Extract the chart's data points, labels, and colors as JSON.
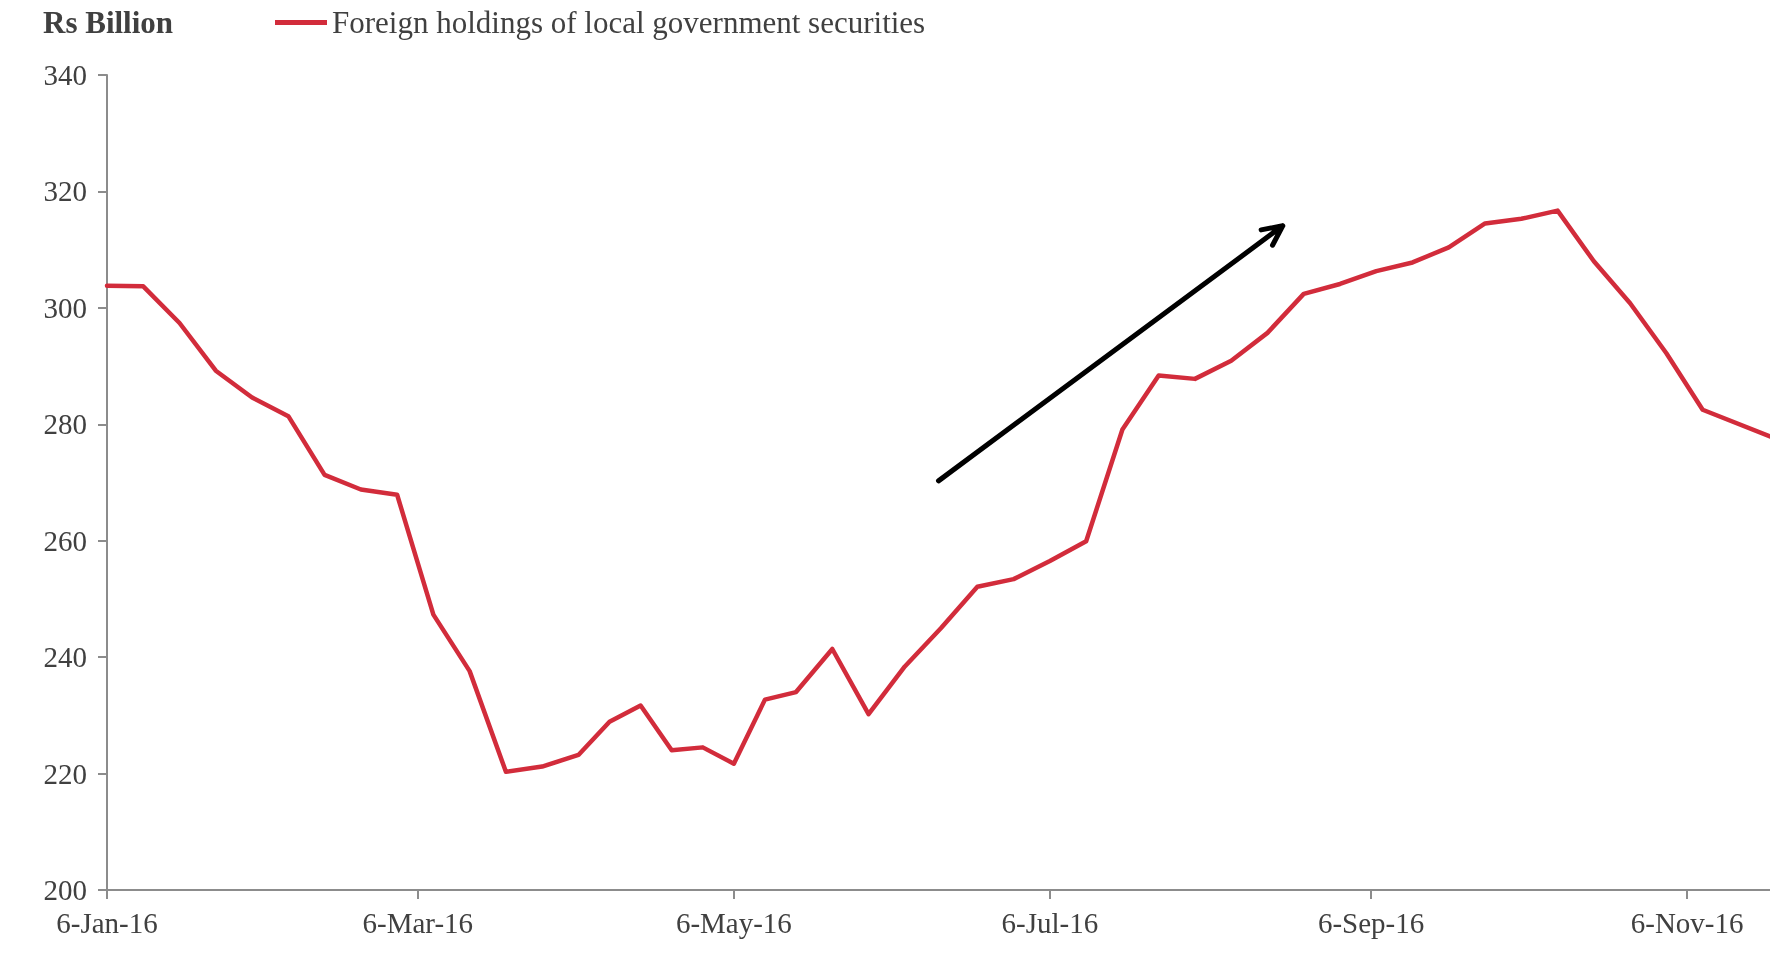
{
  "chart_data": {
    "type": "line",
    "ylabel": "Rs Billion",
    "legend": "top",
    "grid": false,
    "marker": "none",
    "line_style": "solid",
    "x": [
      "2016-01-06",
      "2016-01-13",
      "2016-01-20",
      "2016-01-27",
      "2016-02-03",
      "2016-02-10",
      "2016-02-17",
      "2016-02-24",
      "2016-03-02",
      "2016-03-09",
      "2016-03-16",
      "2016-03-23",
      "2016-03-30",
      "2016-04-06",
      "2016-04-12",
      "2016-04-18",
      "2016-04-24",
      "2016-04-30",
      "2016-05-06",
      "2016-05-12",
      "2016-05-18",
      "2016-05-25",
      "2016-06-01",
      "2016-06-08",
      "2016-06-15",
      "2016-06-22",
      "2016-06-29",
      "2016-07-06",
      "2016-07-13",
      "2016-07-20",
      "2016-07-27",
      "2016-08-03",
      "2016-08-10",
      "2016-08-17",
      "2016-08-24",
      "2016-08-31",
      "2016-09-07",
      "2016-09-14",
      "2016-09-21",
      "2016-09-28",
      "2016-10-05",
      "2016-10-12",
      "2016-10-19",
      "2016-10-26",
      "2016-11-02",
      "2016-11-09",
      "2016-11-22"
    ],
    "series": [
      {
        "name": "Foreign holdings of local government securities",
        "color": "#d22c3b",
        "values": [
          303.8,
          303.7,
          297.4,
          289.2,
          284.6,
          281.4,
          271.3,
          268.8,
          267.9,
          247.3,
          237.6,
          220.3,
          221.2,
          223.2,
          228.9,
          231.7,
          224.0,
          224.5,
          221.7,
          232.7,
          234.0,
          241.4,
          230.2,
          238.4,
          245.0,
          252.1,
          253.4,
          256.5,
          259.9,
          279.1,
          288.4,
          287.8,
          290.9,
          295.7,
          302.4,
          304.1,
          306.3,
          307.8,
          310.4,
          314.5,
          315.3,
          316.7,
          308.0,
          300.8,
          292.2,
          282.5,
          277.9
        ]
      }
    ],
    "xlim": [
      "2016-01-06",
      "2016-11-22"
    ],
    "xticks": [
      {
        "value": "2016-01-06",
        "label": "6-Jan-16"
      },
      {
        "value": "2016-03-06",
        "label": "6-Mar-16"
      },
      {
        "value": "2016-05-06",
        "label": "6-May-16"
      },
      {
        "value": "2016-07-06",
        "label": "6-Jul-16"
      },
      {
        "value": "2016-09-06",
        "label": "6-Sep-16"
      },
      {
        "value": "2016-11-06",
        "label": "6-Nov-16"
      }
    ],
    "ylim": [
      200,
      340
    ],
    "yticks": [
      200,
      220,
      240,
      260,
      280,
      300,
      320,
      340
    ]
  }
}
